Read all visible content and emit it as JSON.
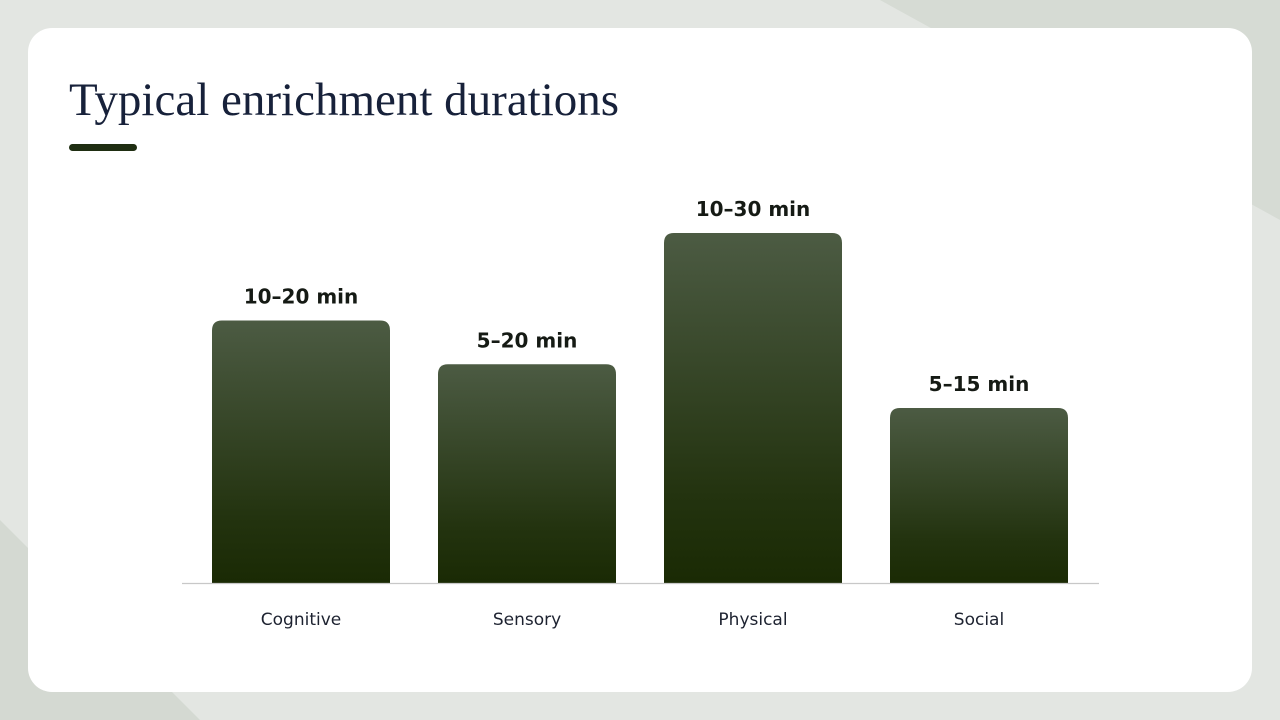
{
  "chart_data": {
    "type": "bar",
    "title": "Typical enrichment durations",
    "categories": [
      "Cognitive",
      "Sensory",
      "Physical",
      "Social"
    ],
    "values": [
      15,
      12.5,
      20,
      10
    ],
    "value_labels": [
      "10–20 min",
      "5–20 min",
      "10–30 min",
      "5–15 min"
    ]
  }
}
